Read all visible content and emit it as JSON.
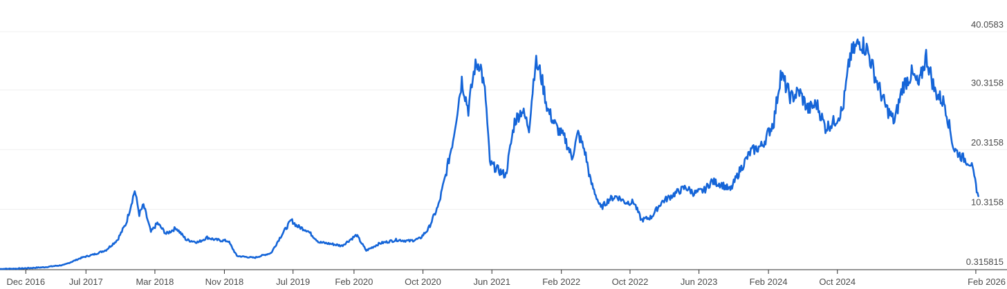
{
  "chart_data": {
    "type": "line",
    "title": "",
    "xlabel": "",
    "ylabel": "",
    "line_color": "#1565d8",
    "grid": true,
    "x_range": [
      "2016-09-01",
      "2026-02-28"
    ],
    "ylim": [
      0.315815,
      40.0583
    ],
    "y_ticks": [
      "0.315815",
      "10.3158",
      "20.3158",
      "30.3158",
      "40.0583"
    ],
    "x_ticks": [
      {
        "label": "Dec 2016",
        "date": "2016-12-01"
      },
      {
        "label": "Jul 2017",
        "date": "2017-07-01"
      },
      {
        "label": "Mar 2018",
        "date": "2018-03-01"
      },
      {
        "label": "Nov 2018",
        "date": "2018-11-01"
      },
      {
        "label": "Jul 2019",
        "date": "2019-07-01"
      },
      {
        "label": "Feb 2020",
        "date": "2020-02-01"
      },
      {
        "label": "Oct 2020",
        "date": "2020-10-01"
      },
      {
        "label": "Jun 2021",
        "date": "2021-06-01"
      },
      {
        "label": "Feb 2022",
        "date": "2022-02-01"
      },
      {
        "label": "Oct 2022",
        "date": "2022-10-01"
      },
      {
        "label": "Jun 2023",
        "date": "2023-06-01"
      },
      {
        "label": "Feb 2024",
        "date": "2024-02-01"
      },
      {
        "label": "Oct 2024",
        "date": "2024-10-01"
      },
      {
        "label": "Feb 2026",
        "date": "2026-02-01"
      }
    ],
    "series": [
      {
        "points": [
          [
            "2016-09-01",
            0.32
          ],
          [
            "2016-11-15",
            0.4
          ],
          [
            "2017-02-01",
            0.6
          ],
          [
            "2017-04-15",
            1.0
          ],
          [
            "2017-06-15",
            2.2
          ],
          [
            "2017-08-01",
            2.8
          ],
          [
            "2017-09-10",
            3.5
          ],
          [
            "2017-10-20",
            5.2
          ],
          [
            "2017-11-20",
            8.0
          ],
          [
            "2017-12-20",
            13.5
          ],
          [
            "2018-01-05",
            9.5
          ],
          [
            "2018-01-20",
            11.0
          ],
          [
            "2018-02-15",
            6.5
          ],
          [
            "2018-03-10",
            8.0
          ],
          [
            "2018-04-10",
            6.2
          ],
          [
            "2018-05-15",
            7.2
          ],
          [
            "2018-06-20",
            5.2
          ],
          [
            "2018-08-01",
            4.8
          ],
          [
            "2018-09-01",
            5.6
          ],
          [
            "2018-10-01",
            5.2
          ],
          [
            "2018-11-15",
            5.0
          ],
          [
            "2018-12-15",
            2.5
          ],
          [
            "2019-02-15",
            2.2
          ],
          [
            "2019-04-15",
            3.0
          ],
          [
            "2019-05-15",
            5.5
          ],
          [
            "2019-06-25",
            8.5
          ],
          [
            "2019-07-15",
            7.5
          ],
          [
            "2019-08-20",
            6.8
          ],
          [
            "2019-10-01",
            4.8
          ],
          [
            "2019-11-15",
            4.5
          ],
          [
            "2019-12-20",
            4.2
          ],
          [
            "2020-02-10",
            6.0
          ],
          [
            "2020-03-15",
            3.4
          ],
          [
            "2020-05-01",
            4.6
          ],
          [
            "2020-07-01",
            5.2
          ],
          [
            "2020-08-15",
            5.0
          ],
          [
            "2020-09-20",
            5.4
          ],
          [
            "2020-10-20",
            7.0
          ],
          [
            "2020-11-25",
            11.0
          ],
          [
            "2020-12-20",
            16.0
          ],
          [
            "2021-01-15",
            22.0
          ],
          [
            "2021-02-15",
            32.0
          ],
          [
            "2021-03-10",
            27.0
          ],
          [
            "2021-04-01",
            34.0
          ],
          [
            "2021-04-20",
            35.0
          ],
          [
            "2021-05-10",
            29.0
          ],
          [
            "2021-05-25",
            18.0
          ],
          [
            "2021-06-20",
            17.0
          ],
          [
            "2021-07-20",
            16.0
          ],
          [
            "2021-08-20",
            25.0
          ],
          [
            "2021-09-15",
            27.0
          ],
          [
            "2021-10-10",
            24.0
          ],
          [
            "2021-11-01",
            35.0
          ],
          [
            "2021-11-20",
            33.0
          ],
          [
            "2021-12-15",
            27.0
          ],
          [
            "2022-01-15",
            24.0
          ],
          [
            "2022-02-15",
            22.0
          ],
          [
            "2022-03-10",
            19.0
          ],
          [
            "2022-04-01",
            23.0
          ],
          [
            "2022-04-25",
            20.0
          ],
          [
            "2022-05-15",
            15.0
          ],
          [
            "2022-06-20",
            10.5
          ],
          [
            "2022-07-20",
            12.0
          ],
          [
            "2022-08-15",
            12.5
          ],
          [
            "2022-09-15",
            11.5
          ],
          [
            "2022-10-15",
            11.5
          ],
          [
            "2022-11-10",
            8.5
          ],
          [
            "2022-12-15",
            9.0
          ],
          [
            "2023-01-20",
            11.5
          ],
          [
            "2023-03-10",
            13.0
          ],
          [
            "2023-04-15",
            14.0
          ],
          [
            "2023-05-15",
            13.0
          ],
          [
            "2023-06-20",
            13.5
          ],
          [
            "2023-07-15",
            15.0
          ],
          [
            "2023-08-20",
            14.5
          ],
          [
            "2023-09-20",
            13.5
          ],
          [
            "2023-10-25",
            17.0
          ],
          [
            "2023-12-01",
            20.0
          ],
          [
            "2024-01-10",
            21.0
          ],
          [
            "2024-02-20",
            25.0
          ],
          [
            "2024-03-15",
            33.0
          ],
          [
            "2024-04-20",
            29.0
          ],
          [
            "2024-05-20",
            30.0
          ],
          [
            "2024-06-20",
            27.0
          ],
          [
            "2024-07-20",
            28.0
          ],
          [
            "2024-08-20",
            24.0
          ],
          [
            "2024-09-20",
            25.0
          ],
          [
            "2024-10-20",
            27.0
          ],
          [
            "2024-11-15",
            36.0
          ],
          [
            "2024-12-20",
            38.5
          ],
          [
            "2025-01-15",
            37.0
          ],
          [
            "2025-02-15",
            32.0
          ],
          [
            "2025-03-20",
            27.5
          ],
          [
            "2025-04-20",
            25.0
          ],
          [
            "2025-05-20",
            31.0
          ],
          [
            "2025-06-20",
            33.0
          ],
          [
            "2025-07-15",
            31.0
          ],
          [
            "2025-08-10",
            36.0
          ],
          [
            "2025-09-10",
            30.0
          ],
          [
            "2025-10-15",
            28.0
          ],
          [
            "2025-11-15",
            20.5
          ],
          [
            "2025-12-15",
            19.0
          ],
          [
            "2026-01-15",
            18.0
          ],
          [
            "2026-02-10",
            12.5
          ]
        ]
      }
    ]
  }
}
